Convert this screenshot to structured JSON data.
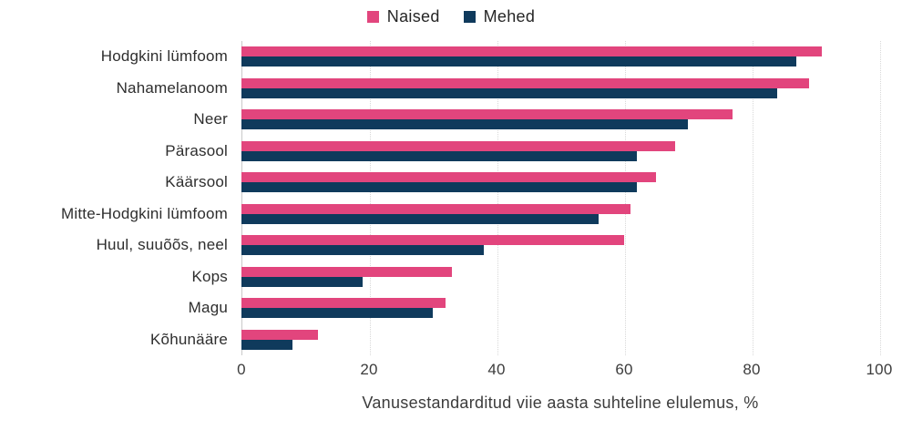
{
  "colors": {
    "naised": "#E2457D",
    "mehed": "#0F3A5C",
    "gridline": "#d8d8d8",
    "axis_line": "#c9c9c9",
    "text": "#2e2e2e"
  },
  "chart_data": {
    "type": "bar",
    "orientation": "horizontal",
    "title": "",
    "xlabel": "Vanusestandarditud viie aasta suhteline elulemus, %",
    "ylabel": "",
    "xlim": [
      0,
      100
    ],
    "xticks": [
      0,
      20,
      40,
      60,
      80,
      100
    ],
    "grid": "vertical-dotted",
    "legend_position": "top-center",
    "categories": [
      "Hodgkini lümfoom",
      "Nahamelanoom",
      "Neer",
      "Pärasool",
      "Käärsool",
      "Mitte-Hodgkini lümfoom",
      "Huul, suuõõs, neel",
      "Kops",
      "Magu",
      "Kõhunääre"
    ],
    "series": [
      {
        "name": "Naised",
        "color": "#E2457D",
        "values": [
          91,
          89,
          77,
          68,
          65,
          61,
          60,
          33,
          32,
          12
        ]
      },
      {
        "name": "Mehed",
        "color": "#0F3A5C",
        "values": [
          87,
          84,
          70,
          62,
          62,
          56,
          38,
          19,
          30,
          8
        ]
      }
    ]
  }
}
